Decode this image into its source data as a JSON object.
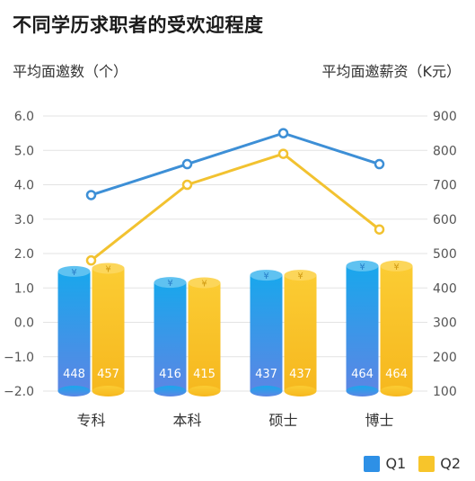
{
  "title": "不同学历求职者的受欢迎程度",
  "chart_data": {
    "type": "bar",
    "title": "不同学历求职者的受欢迎程度",
    "categories": [
      "专科",
      "本科",
      "硕士",
      "博士"
    ],
    "bar_symbol": "¥",
    "left_axis": {
      "label": "平均面邀数（个）",
      "ylim": [
        -2.0,
        6.0
      ],
      "ticks": [
        "6.0",
        "5.0",
        "4.0",
        "3.0",
        "2.0",
        "1.0",
        "0.0",
        "−1.0",
        "−2.0"
      ]
    },
    "right_axis": {
      "label": "平均面邀薪资（K元）",
      "ylim": [
        100,
        900
      ],
      "ticks": [
        "900",
        "800",
        "700",
        "600",
        "500",
        "400",
        "300",
        "200",
        "100"
      ]
    },
    "series": [
      {
        "name": "Q1",
        "kind": "bar",
        "axis": "right",
        "color": "#3f8fe0",
        "values": [
          448,
          416,
          437,
          464
        ]
      },
      {
        "name": "Q2",
        "kind": "bar",
        "axis": "right",
        "color": "#f7c52b",
        "values": [
          457,
          415,
          437,
          464
        ]
      },
      {
        "kind": "line",
        "axis": "left",
        "color": "#3d8fd6",
        "values": [
          3.7,
          4.6,
          5.5,
          4.6
        ]
      },
      {
        "kind": "line",
        "axis": "left",
        "color": "#f2c230",
        "values": [
          1.8,
          4.0,
          4.9,
          2.7
        ]
      }
    ],
    "legend": {
      "placement": "bottom-right",
      "entries": [
        "Q1",
        "Q2"
      ]
    },
    "grid": true
  }
}
